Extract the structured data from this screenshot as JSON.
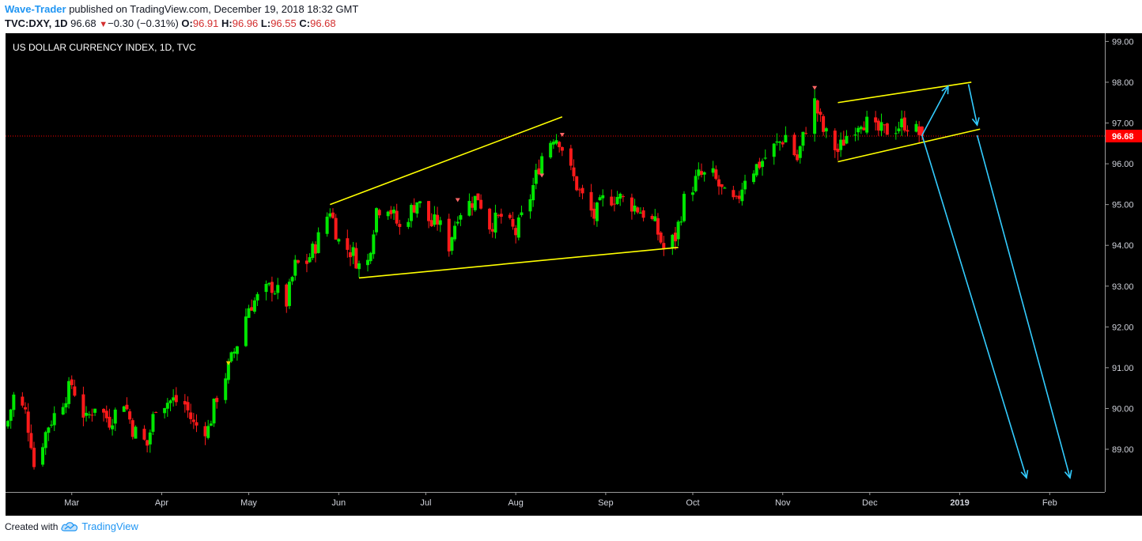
{
  "header": {
    "author": "Wave-Trader",
    "published_text": "published on TradingView.com, December 19, 2018 18:32 GMT",
    "symbol": "TVC:DXY, 1D",
    "last": "96.68",
    "change_arrow": "▼",
    "change": "−0.30 (−0.31%)",
    "o_label": "O:",
    "o_value": "96.91",
    "h_label": "H:",
    "h_value": "96.96",
    "l_label": "L:",
    "l_value": "96.55",
    "c_label": "C:",
    "c_value": "96.68"
  },
  "footer": {
    "created_with": "Created with",
    "brand": "TradingView",
    "logo_icon": "tradingview-cloud-icon"
  },
  "colors": {
    "background": "#000000",
    "up": "#00e600",
    "down": "#ff1a1a",
    "trendline": "#ffff00",
    "arrow": "#33ccff",
    "last_price": "#ff0000"
  },
  "chart_data": {
    "type": "candlestick",
    "title": "US DOLLAR CURRENCY INDEX, 1D, TVC",
    "x_tick_labels": [
      "Mar",
      "Apr",
      "May",
      "Jun",
      "Jul",
      "Aug",
      "Sep",
      "Oct",
      "Nov",
      "Dec",
      "2019",
      "Feb"
    ],
    "y_tick_labels": [
      "99.00",
      "98.00",
      "97.00",
      "96.00",
      "95.00",
      "94.00",
      "93.00",
      "92.00",
      "91.00",
      "90.00",
      "89.00"
    ],
    "ylim": [
      88.0,
      99.3
    ],
    "last_price_label": "96.68",
    "close_series": {
      "start_date": "2018-02-07",
      "end_date": "2018-12-19",
      "anchors": [
        [
          "2018-02-07",
          89.7
        ],
        [
          "2018-02-09",
          90.3
        ],
        [
          "2018-02-13",
          89.9
        ],
        [
          "2018-02-15",
          89.2
        ],
        [
          "2018-02-16",
          88.6
        ],
        [
          "2018-02-21",
          89.6
        ],
        [
          "2018-02-26",
          90.2
        ],
        [
          "2018-03-01",
          90.6
        ],
        [
          "2018-03-06",
          89.7
        ],
        [
          "2018-03-09",
          90.1
        ],
        [
          "2018-03-14",
          89.7
        ],
        [
          "2018-03-19",
          90.2
        ],
        [
          "2018-03-22",
          89.5
        ],
        [
          "2018-03-27",
          89.1
        ],
        [
          "2018-03-30",
          90.1
        ],
        [
          "2018-04-05",
          90.2
        ],
        [
          "2018-04-09",
          90.1
        ],
        [
          "2018-04-12",
          89.6
        ],
        [
          "2018-04-17",
          89.5
        ],
        [
          "2018-04-20",
          90.3
        ],
        [
          "2018-04-24",
          91.0
        ],
        [
          "2018-04-27",
          91.6
        ],
        [
          "2018-05-01",
          92.5
        ],
        [
          "2018-05-04",
          92.7
        ],
        [
          "2018-05-09",
          93.0
        ],
        [
          "2018-05-14",
          92.6
        ],
        [
          "2018-05-17",
          93.5
        ],
        [
          "2018-05-21",
          93.6
        ],
        [
          "2018-05-24",
          94.0
        ],
        [
          "2018-05-29",
          94.9
        ],
        [
          "2018-06-01",
          94.1
        ],
        [
          "2018-06-06",
          93.8
        ],
        [
          "2018-06-08",
          93.5
        ],
        [
          "2018-06-11",
          93.6
        ],
        [
          "2018-06-14",
          94.9
        ],
        [
          "2018-06-18",
          95.0
        ],
        [
          "2018-06-22",
          94.4
        ],
        [
          "2018-06-28",
          95.1
        ],
        [
          "2018-07-03",
          94.5
        ],
        [
          "2018-07-05",
          94.6
        ],
        [
          "2018-07-09",
          94.0
        ],
        [
          "2018-07-12",
          94.8
        ],
        [
          "2018-07-19",
          95.2
        ],
        [
          "2018-07-23",
          94.5
        ],
        [
          "2018-07-27",
          94.7
        ],
        [
          "2018-08-01",
          94.3
        ],
        [
          "2018-08-06",
          95.2
        ],
        [
          "2018-08-10",
          96.2
        ],
        [
          "2018-08-14",
          96.7
        ],
        [
          "2018-08-16",
          96.6
        ],
        [
          "2018-08-20",
          95.8
        ],
        [
          "2018-08-23",
          95.3
        ],
        [
          "2018-08-28",
          94.7
        ],
        [
          "2018-08-31",
          95.1
        ],
        [
          "2018-09-05",
          95.2
        ],
        [
          "2018-09-10",
          95.0
        ],
        [
          "2018-09-14",
          94.8
        ],
        [
          "2018-09-18",
          94.5
        ],
        [
          "2018-09-21",
          93.9
        ],
        [
          "2018-09-25",
          94.2
        ],
        [
          "2018-09-28",
          95.1
        ],
        [
          "2018-10-03",
          95.7
        ],
        [
          "2018-10-08",
          95.7
        ],
        [
          "2018-10-12",
          95.2
        ],
        [
          "2018-10-16",
          95.0
        ],
        [
          "2018-10-19",
          95.7
        ],
        [
          "2018-10-24",
          96.0
        ],
        [
          "2018-10-29",
          96.4
        ],
        [
          "2018-11-01",
          96.6
        ],
        [
          "2018-11-02",
          96.7
        ],
        [
          "2018-11-06",
          96.1
        ],
        [
          "2018-11-09",
          96.9
        ],
        [
          "2018-11-12",
          97.5
        ],
        [
          "2018-11-15",
          96.8
        ],
        [
          "2018-11-20",
          96.3
        ],
        [
          "2018-11-23",
          96.7
        ],
        [
          "2018-11-28",
          97.1
        ],
        [
          "2018-12-03",
          96.8
        ],
        [
          "2018-12-06",
          96.8
        ],
        [
          "2018-12-10",
          96.9
        ],
        [
          "2018-12-13",
          97.0
        ],
        [
          "2018-12-17",
          96.8
        ],
        [
          "2018-12-19",
          96.68
        ]
      ]
    },
    "annotations": {
      "trendlines": [
        {
          "from": [
            "2018-05-29",
            95.0
          ],
          "to": [
            "2018-08-17",
            97.15
          ]
        },
        {
          "from": [
            "2018-06-08",
            93.2
          ],
          "to": [
            "2018-09-26",
            93.95
          ]
        },
        {
          "from": [
            "2018-11-20",
            97.5
          ],
          "to": [
            "2019-01-05",
            98.0
          ]
        },
        {
          "from": [
            "2018-11-20",
            96.05
          ],
          "to": [
            "2019-01-08",
            96.85
          ]
        }
      ],
      "projection_arrows": [
        {
          "points": [
            [
              "2018-12-19",
              96.7
            ],
            [
              "2018-12-28",
              97.9
            ]
          ]
        },
        {
          "points": [
            [
              "2019-01-04",
              97.95
            ],
            [
              "2019-01-07",
              96.95
            ]
          ]
        },
        {
          "points": [
            [
              "2018-12-19",
              96.7
            ],
            [
              "2019-01-24",
              88.3
            ]
          ]
        },
        {
          "points": [
            [
              "2019-01-07",
              96.7
            ],
            [
              "2019-02-08",
              88.3
            ]
          ]
        }
      ]
    }
  }
}
